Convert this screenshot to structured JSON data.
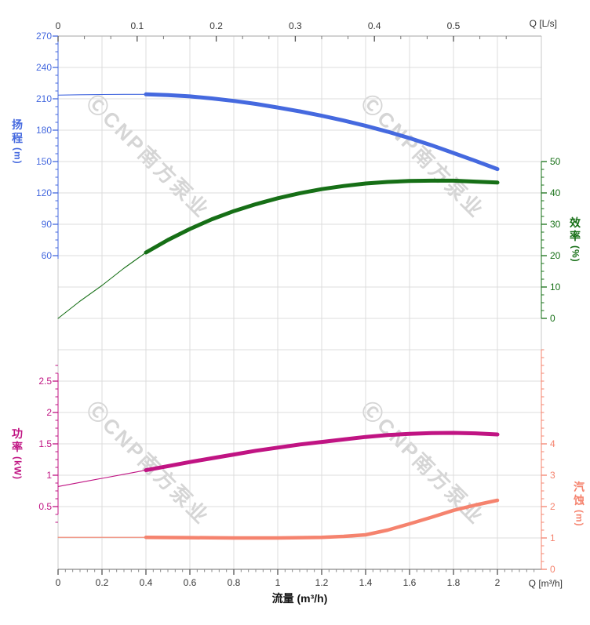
{
  "watermark": {
    "text": "ⒸCNP南方泵业",
    "color": "rgba(125,125,125,0.32)"
  },
  "axes": {
    "top": {
      "unit_label": "Q [L/s]",
      "ticks": [
        0,
        0.1,
        0.2,
        0.3,
        0.4,
        0.5
      ],
      "color": "#3a3a3a"
    },
    "bottom": {
      "unit_label": "Q [m³/h]",
      "title": "流量 (m³/h)",
      "ticks": [
        0,
        0.2,
        0.4,
        0.6,
        0.8,
        1,
        1.2,
        1.4,
        1.6,
        1.8,
        2
      ],
      "color": "#3a3a3a"
    },
    "head": {
      "title_chars": [
        "扬",
        "程"
      ],
      "unit": "(m)",
      "ticks": [
        270,
        240,
        210,
        180,
        150,
        120,
        90,
        60
      ],
      "color": "#4569df"
    },
    "efficiency": {
      "title_chars": [
        "效",
        "率"
      ],
      "unit": "(%)",
      "ticks": [
        50,
        40,
        30,
        20,
        10,
        0
      ],
      "color": "#166f16"
    },
    "power": {
      "title_chars": [
        "功",
        "率"
      ],
      "unit": "(kW)",
      "ticks": [
        2.5,
        2,
        1.5,
        1,
        0.5
      ],
      "color": "#c01483"
    },
    "npsh": {
      "title_chars": [
        "汽",
        "蚀"
      ],
      "unit": "(m)",
      "ticks": [
        4,
        3,
        2,
        1,
        0
      ],
      "color": "#f5836e"
    }
  },
  "chart_data": {
    "type": "line",
    "x_label": "流量 (m³/h)",
    "x_unit_bottom": "Q [m³/h]",
    "x_unit_top": "Q [L/s]",
    "x_range_m3h": [
      0,
      2.2
    ],
    "x_range_Ls": [
      0,
      0.611
    ],
    "grid": true,
    "rated_flow_range_m3h": [
      0.4,
      2.0
    ],
    "series": [
      {
        "key": "head",
        "name": "扬程",
        "unit": "m",
        "axis": "head",
        "color": "#4569df",
        "ylim": [
          0,
          272
        ],
        "thick_from": 0.4,
        "thick_width": 5,
        "points": [
          [
            0,
            213.5
          ],
          [
            0.1,
            213.9
          ],
          [
            0.2,
            214.1
          ],
          [
            0.3,
            214.3
          ],
          [
            0.4,
            214.3
          ],
          [
            0.5,
            213.6
          ],
          [
            0.6,
            212.3
          ],
          [
            0.7,
            210.4
          ],
          [
            0.8,
            208.0
          ],
          [
            0.9,
            205.1
          ],
          [
            1.0,
            201.7
          ],
          [
            1.1,
            198.0
          ],
          [
            1.2,
            193.8
          ],
          [
            1.3,
            189.2
          ],
          [
            1.4,
            184.2
          ],
          [
            1.5,
            178.6
          ],
          [
            1.6,
            172.4
          ],
          [
            1.7,
            165.6
          ],
          [
            1.8,
            158.2
          ],
          [
            1.9,
            150.6
          ],
          [
            2.0,
            142.8
          ]
        ]
      },
      {
        "key": "efficiency",
        "name": "效率",
        "unit": "%",
        "axis": "efficiency",
        "color": "#166f16",
        "ylim": [
          0,
          50
        ],
        "thick_from": 0.4,
        "thick_width": 5,
        "points": [
          [
            0,
            0
          ],
          [
            0.1,
            5.5
          ],
          [
            0.2,
            10.5
          ],
          [
            0.3,
            16
          ],
          [
            0.4,
            21
          ],
          [
            0.5,
            25
          ],
          [
            0.6,
            28.5
          ],
          [
            0.7,
            31.6
          ],
          [
            0.8,
            34.2
          ],
          [
            0.9,
            36.4
          ],
          [
            1.0,
            38.3
          ],
          [
            1.1,
            39.9
          ],
          [
            1.2,
            41.2
          ],
          [
            1.3,
            42.2
          ],
          [
            1.4,
            43.0
          ],
          [
            1.5,
            43.5
          ],
          [
            1.6,
            43.8
          ],
          [
            1.7,
            43.9
          ],
          [
            1.8,
            43.9
          ],
          [
            1.9,
            43.6
          ],
          [
            2.0,
            43.3
          ]
        ]
      },
      {
        "key": "power",
        "name": "功率",
        "unit": "kW",
        "axis": "power",
        "color": "#c01483",
        "ylim": [
          0,
          3
        ],
        "thick_from": 0.4,
        "thick_width": 5,
        "points": [
          [
            0,
            0.82
          ],
          [
            0.1,
            0.885
          ],
          [
            0.2,
            0.95
          ],
          [
            0.3,
            1.015
          ],
          [
            0.4,
            1.08
          ],
          [
            0.5,
            1.145
          ],
          [
            0.6,
            1.21
          ],
          [
            0.7,
            1.27
          ],
          [
            0.8,
            1.33
          ],
          [
            0.9,
            1.39
          ],
          [
            1.0,
            1.44
          ],
          [
            1.1,
            1.49
          ],
          [
            1.2,
            1.53
          ],
          [
            1.3,
            1.57
          ],
          [
            1.4,
            1.61
          ],
          [
            1.5,
            1.64
          ],
          [
            1.6,
            1.66
          ],
          [
            1.7,
            1.673
          ],
          [
            1.8,
            1.675
          ],
          [
            1.9,
            1.668
          ],
          [
            2.0,
            1.65
          ]
        ]
      },
      {
        "key": "npsh",
        "name": "汽蚀",
        "unit": "m",
        "axis": "npsh",
        "color": "#f5836e",
        "ylim": [
          0,
          7
        ],
        "thick_from": 0.4,
        "thick_width": 4.5,
        "points": [
          [
            0,
            1.02
          ],
          [
            0.2,
            1.02
          ],
          [
            0.4,
            1.02
          ],
          [
            0.6,
            1.01
          ],
          [
            0.8,
            1.0
          ],
          [
            1.0,
            1.0
          ],
          [
            1.1,
            1.01
          ],
          [
            1.2,
            1.02
          ],
          [
            1.3,
            1.05
          ],
          [
            1.4,
            1.1
          ],
          [
            1.5,
            1.25
          ],
          [
            1.6,
            1.45
          ],
          [
            1.7,
            1.66
          ],
          [
            1.8,
            1.88
          ],
          [
            1.9,
            2.05
          ],
          [
            2.0,
            2.2
          ]
        ]
      }
    ]
  }
}
